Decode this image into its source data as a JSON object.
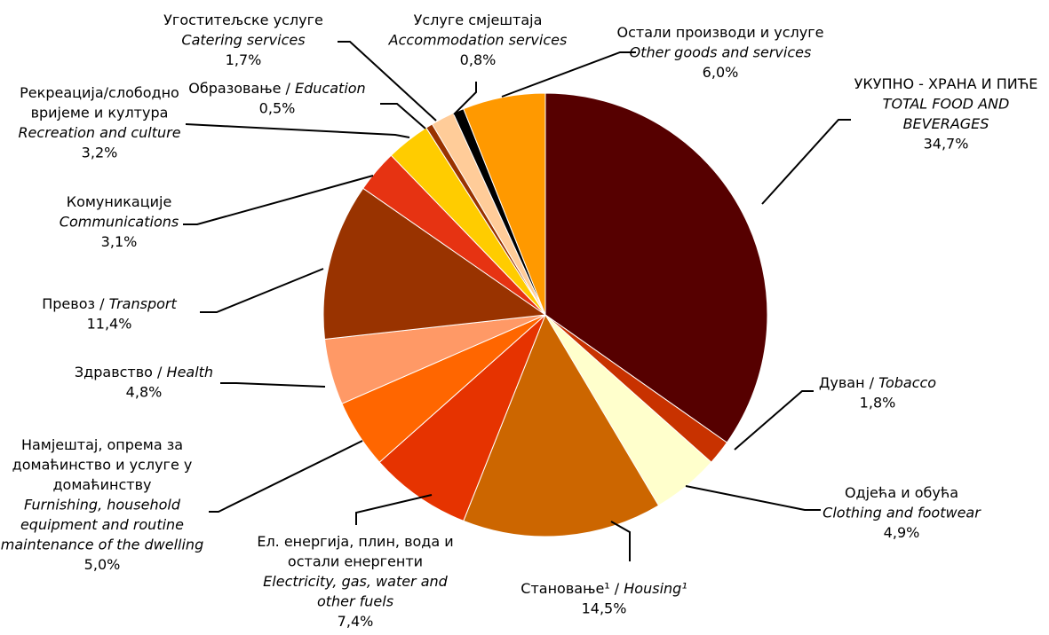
{
  "chart_data": {
    "type": "pie",
    "start_angle_deg": 0,
    "direction": "clockwise",
    "slices": [
      {
        "id": "food",
        "lines": [
          "УКУПНО - ХРАНА И ПИЋЕ",
          "TOTAL FOOD AND",
          "BEVERAGES"
        ],
        "italic": [
          false,
          true,
          true
        ],
        "value": 34.7,
        "value_label": "34,7%",
        "color": "#560000"
      },
      {
        "id": "tobacco",
        "lines": [
          "Дуван / Tobacco"
        ],
        "value": 1.8,
        "value_label": "1,8%",
        "color": "#C83200"
      },
      {
        "id": "clothing",
        "lines": [
          "Одјећа и обућа",
          "Clothing and footwear"
        ],
        "italic": [
          false,
          true
        ],
        "value": 4.9,
        "value_label": "4,9%",
        "color": "#FFFFCC"
      },
      {
        "id": "housing",
        "lines": [
          "Становање¹ / Housing¹"
        ],
        "value": 14.5,
        "value_label": "14,5%",
        "color": "#CC6600"
      },
      {
        "id": "electricity",
        "lines": [
          "Ел. енергија, плин, вода и",
          "остали енергенти",
          "Electricity, gas, water and",
          "other fuels"
        ],
        "italic": [
          false,
          false,
          true,
          true
        ],
        "value": 7.4,
        "value_label": "7,4%",
        "color": "#E63300"
      },
      {
        "id": "furnishing",
        "lines": [
          "Намјештај, опрема за",
          "домаћинство и услуге у",
          "домаћинству",
          "Furnishing, household",
          "equipment and routine",
          "maintenance of the dwelling"
        ],
        "italic": [
          false,
          false,
          false,
          true,
          true,
          true
        ],
        "value": 5.0,
        "value_label": "5,0%",
        "color": "#FF6600"
      },
      {
        "id": "health",
        "lines": [
          "Здравство / Health"
        ],
        "value": 4.8,
        "value_label": "4,8%",
        "color": "#FF9966"
      },
      {
        "id": "transport",
        "lines": [
          "Превоз / Transport"
        ],
        "value": 11.4,
        "value_label": "11,4%",
        "color": "#993300"
      },
      {
        "id": "communications",
        "lines": [
          "Комуникације",
          "Communications"
        ],
        "italic": [
          false,
          true
        ],
        "value": 3.1,
        "value_label": "3,1%",
        "color": "#E63312"
      },
      {
        "id": "recreation",
        "lines": [
          "Рекреација/слободно",
          "вријеме и култура",
          "Recreation and culture"
        ],
        "italic": [
          false,
          false,
          true
        ],
        "value": 3.2,
        "value_label": "3,2%",
        "color": "#FFCC00"
      },
      {
        "id": "education",
        "lines": [
          "Образовање / Education"
        ],
        "value": 0.5,
        "value_label": "0,5%",
        "color": "#993300"
      },
      {
        "id": "catering",
        "lines": [
          "Угоститељске услуге",
          "Catering services"
        ],
        "italic": [
          false,
          true
        ],
        "value": 1.7,
        "value_label": "1,7%",
        "color": "#FFCC99"
      },
      {
        "id": "accommodation",
        "lines": [
          "Услуге смјештаја",
          "Accommodation services"
        ],
        "italic": [
          false,
          true
        ],
        "value": 0.8,
        "value_label": "0,8%",
        "color": "#000000"
      },
      {
        "id": "other",
        "lines": [
          "Остали производи и услуге",
          "Other goods and services"
        ],
        "italic": [
          false,
          true
        ],
        "value": 6.0,
        "value_label": "6,0%",
        "color": "#FF9900"
      }
    ]
  }
}
